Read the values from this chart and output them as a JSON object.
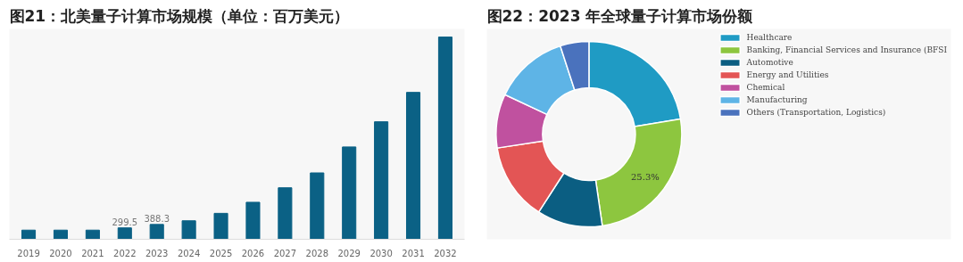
{
  "chart_data": [
    {
      "type": "bar",
      "title": "图21：北美量子计算市场规模（单位：百万美元）",
      "categories": [
        "2019",
        "2020",
        "2021",
        "2022",
        "2023",
        "2024",
        "2025",
        "2026",
        "2027",
        "2028",
        "2029",
        "2030",
        "2031",
        "2032"
      ],
      "values": [
        240,
        240,
        240,
        299.5,
        388.3,
        485,
        680,
        970,
        1350,
        1740,
        2420,
        3080,
        3850,
        5300
      ],
      "color": "#0b6185",
      "value_labels": [
        null,
        null,
        null,
        "299.5",
        "388.3",
        null,
        null,
        null,
        null,
        null,
        null,
        null,
        null,
        null
      ],
      "tick_labels": "x",
      "grid": false
    },
    {
      "type": "donut",
      "title": "图22：2023 年全球量子计算市场份额",
      "categories": [
        "Healthcare",
        "Banking, Financial Services and Insurance (BFSI",
        "Automotive",
        "Energy and Utilities",
        "Chemical",
        "Manufacturing",
        "Others (Transportation, Logistics)"
      ],
      "values": [
        22.4,
        25.3,
        11.4,
        13.5,
        9.4,
        13.0,
        5.0
      ],
      "colors": [
        "#1f9bc4",
        "#8dc63f",
        "#0b5e82",
        "#e35555",
        "#c0519f",
        "#5eb4e6",
        "#4a72bd"
      ],
      "value_labels": [
        null,
        "25.3%",
        null,
        null,
        null,
        null,
        null
      ],
      "legend": "right"
    }
  ]
}
